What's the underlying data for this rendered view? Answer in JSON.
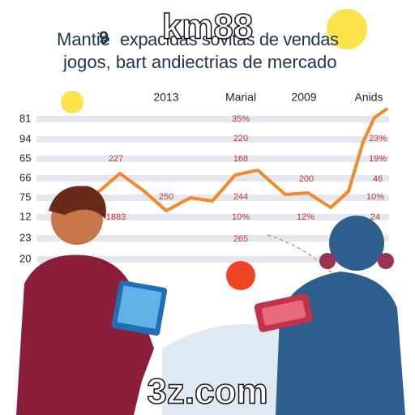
{
  "watermark": {
    "top": "km88",
    "bottom": "3z.com"
  },
  "header": {
    "line1_start": "Mantie",
    "number": "9",
    "line1_end": "expacidas sovitas de vendas",
    "line2": "jogos, bart andiectrias de mercado"
  },
  "column_heads": [
    "2013",
    "Marial",
    "2009",
    "Anids"
  ],
  "row_labels": [
    "81",
    "94",
    "65",
    "66",
    "75",
    "12",
    "23",
    "20"
  ],
  "annotations": [
    "35%",
    "220",
    "168",
    "227",
    "200",
    "250",
    "244",
    "10%",
    "12%",
    "1883",
    "265",
    "23%",
    "19%",
    "46",
    "10%",
    "24"
  ]
}
